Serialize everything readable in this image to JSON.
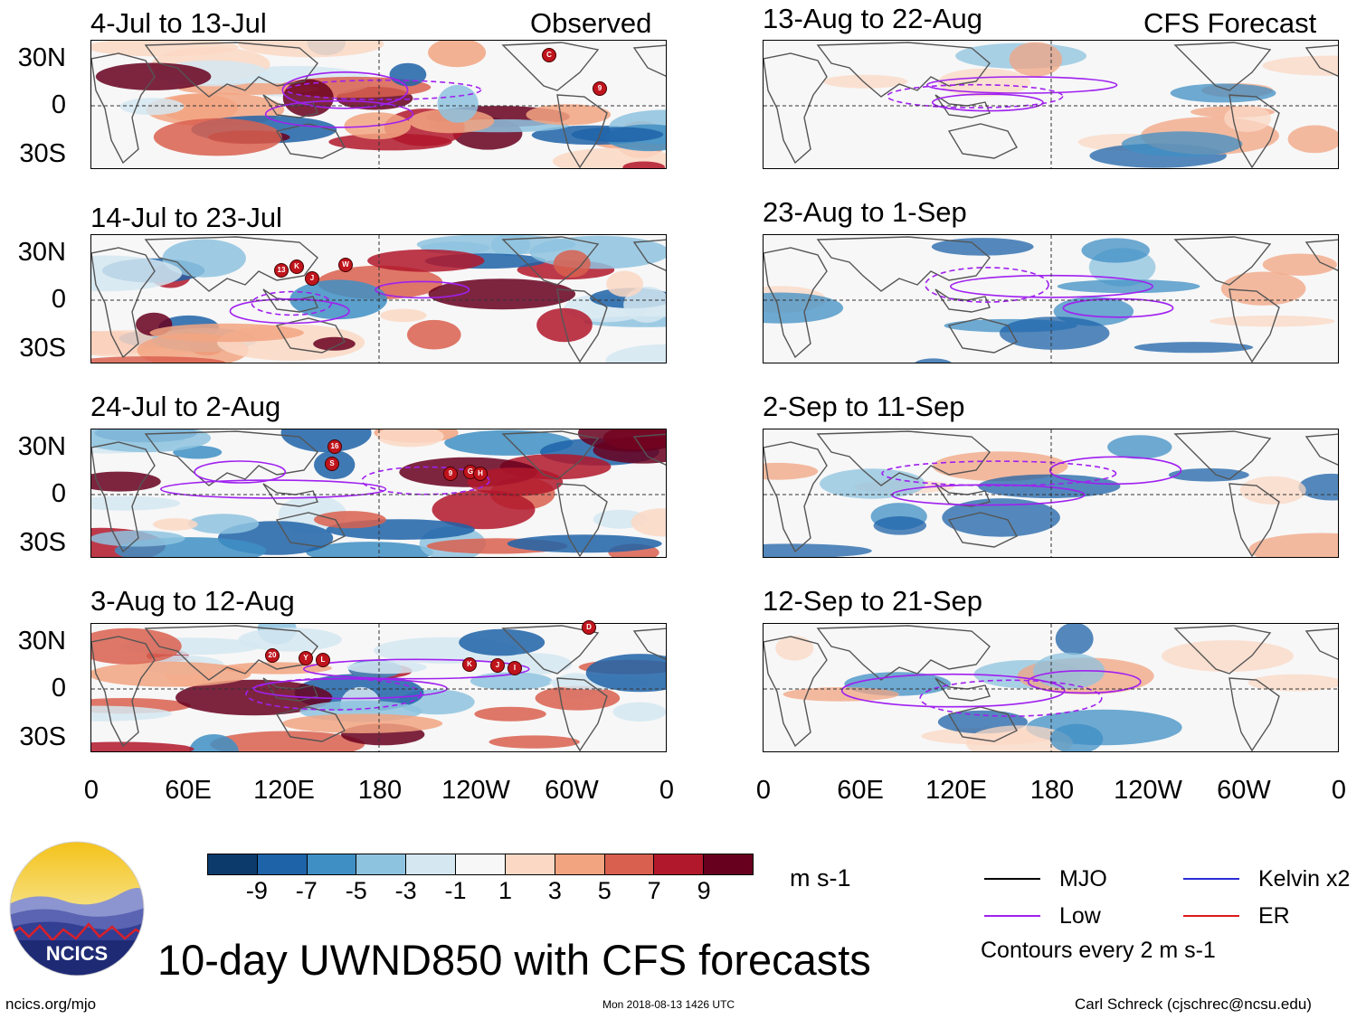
{
  "panels": {
    "observed": [
      {
        "date": "4-Jul to 13-Jul",
        "tag": "Observed",
        "storms": [
          "C",
          "9"
        ]
      },
      {
        "date": "14-Jul to 23-Jul",
        "storms": [
          "13",
          "K",
          "W",
          "J"
        ]
      },
      {
        "date": "24-Jul to 2-Aug",
        "storms": [
          "16",
          "S",
          "9",
          "G",
          "H"
        ]
      },
      {
        "date": "3-Aug to 12-Aug",
        "storms": [
          "20",
          "Y",
          "L",
          "K",
          "J",
          "I",
          "D"
        ]
      }
    ],
    "forecast": [
      {
        "date": "13-Aug to 22-Aug",
        "tag": "CFS Forecast"
      },
      {
        "date": "23-Aug to 1-Sep"
      },
      {
        "date": "2-Sep to 11-Sep"
      },
      {
        "date": "12-Sep to 21-Sep"
      }
    ]
  },
  "axes": {
    "lat_ticks": [
      "30N",
      "0",
      "30S"
    ],
    "lon_ticks": [
      "0",
      "60E",
      "120E",
      "180",
      "120W",
      "60W",
      "0"
    ]
  },
  "colorbar": {
    "labels": [
      "-9",
      "-7",
      "-5",
      "-3",
      "-1",
      "1",
      "3",
      "5",
      "7",
      "9"
    ],
    "colors": [
      "#0b3a6b",
      "#1e63a8",
      "#3f8fc4",
      "#8ec3df",
      "#d5e7f1",
      "#f7f7f7",
      "#fbd8c4",
      "#f2a481",
      "#d9604f",
      "#b2182b",
      "#67001f"
    ],
    "units": "m s-1"
  },
  "legend": {
    "items": [
      {
        "label": "MJO",
        "color": "#000000"
      },
      {
        "label": "Kelvin x2",
        "color": "#2b2bd9"
      },
      {
        "label": "Low",
        "color": "#a020f0"
      },
      {
        "label": "ER",
        "color": "#dd1a1a"
      }
    ],
    "note": "Contours every 2 m s-1"
  },
  "footer": {
    "logo_text": "NCICS",
    "title": "10-day UWND850 with CFS forecasts",
    "url": "ncics.org/mjo",
    "timestamp": "Mon 2018-08-13 1426 UTC",
    "author": "Carl Schreck (cjschrec@ncsu.edu)"
  }
}
